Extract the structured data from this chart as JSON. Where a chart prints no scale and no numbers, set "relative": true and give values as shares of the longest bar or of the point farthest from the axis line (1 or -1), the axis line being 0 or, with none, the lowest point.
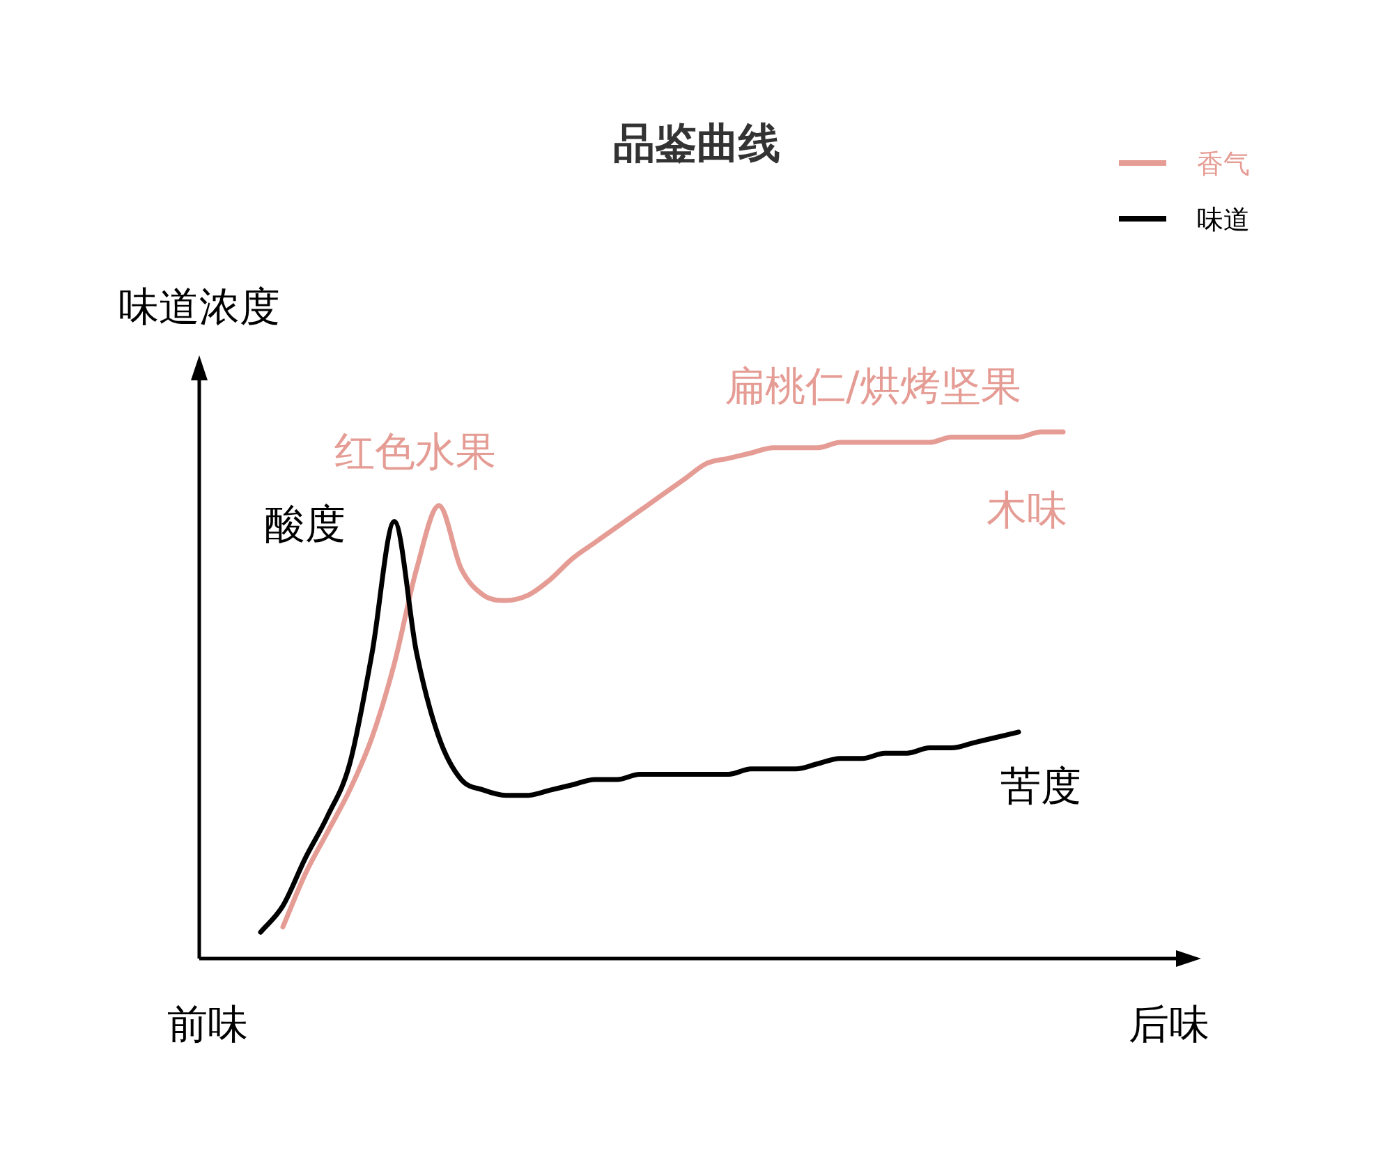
{
  "chart_data": {
    "type": "line",
    "relative": true,
    "title": "品鉴曲线",
    "ylabel": "味道浓度",
    "legend": "top right",
    "line_style": "solid",
    "marker": "none",
    "categories": [
      null,
      null,
      null,
      null,
      null,
      null,
      null,
      null,
      null,
      null,
      null,
      null,
      null,
      null,
      null,
      null,
      null,
      null,
      null,
      null,
      null,
      null,
      null,
      null,
      null,
      null,
      null,
      null,
      null,
      null,
      null,
      null,
      null,
      null,
      null,
      null,
      null
    ],
    "series": [
      {
        "name": "香气",
        "color": "#e59c94",
        "values": [
          null,
          0.06,
          0.16,
          0.24,
          0.32,
          0.42,
          0.56,
          0.74,
          0.86,
          0.74,
          0.69,
          0.68,
          0.69,
          0.72,
          0.76,
          0.79,
          0.82,
          0.85,
          0.88,
          0.91,
          0.94,
          0.95,
          0.96,
          0.97,
          0.97,
          0.97,
          0.98,
          0.98,
          0.98,
          0.98,
          0.98,
          0.99,
          0.99,
          0.99,
          0.99,
          1.0,
          1.0
        ]
      },
      {
        "name": "味道",
        "color": "#000000",
        "values": [
          0.05,
          0.1,
          0.19,
          0.27,
          0.37,
          0.58,
          0.83,
          0.58,
          0.42,
          0.34,
          0.32,
          0.31,
          0.31,
          0.32,
          0.33,
          0.34,
          0.34,
          0.35,
          0.35,
          0.35,
          0.35,
          0.35,
          0.36,
          0.36,
          0.36,
          0.37,
          0.38,
          0.38,
          0.39,
          0.39,
          0.4,
          0.4,
          0.41,
          0.42,
          0.43,
          null,
          null
        ]
      }
    ],
    "annotations": [
      "前味",
      "后味",
      "红色水果",
      "扁桃仁/烘烤坚果",
      "木味",
      "酸度",
      "苦度"
    ]
  }
}
